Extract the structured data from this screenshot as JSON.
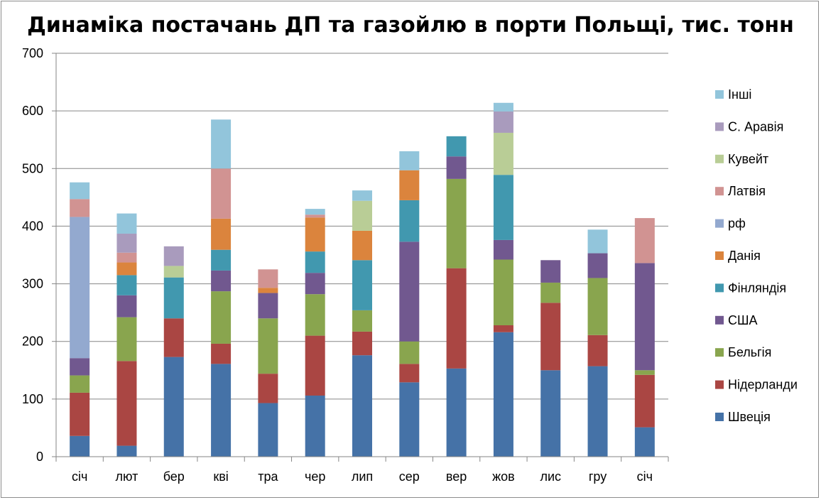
{
  "chart_data": {
    "type": "bar",
    "stacked": true,
    "title": "Динаміка постачань ДП та газойлю в порти Польщі, тис. тонн",
    "xlabel": "",
    "ylabel": "",
    "ylim": [
      0,
      700
    ],
    "yticks": [
      "0",
      "100",
      "200",
      "300",
      "400",
      "500",
      "600",
      "700"
    ],
    "grid": true,
    "legend_position": "right",
    "categories": [
      "січ",
      "лют",
      "бер",
      "кві",
      "тра",
      "чер",
      "лип",
      "сер",
      "вер",
      "жов",
      "лис",
      "гру",
      "січ"
    ],
    "series": [
      {
        "name": "Швеція",
        "color": "#4572A7",
        "values": [
          36,
          19,
          173,
          161,
          93,
          106,
          176,
          129,
          153,
          216,
          150,
          157,
          51
        ]
      },
      {
        "name": "Нідерланди",
        "color": "#AA4643",
        "values": [
          75,
          147,
          67,
          35,
          51,
          104,
          41,
          32,
          174,
          12,
          117,
          54,
          91
        ]
      },
      {
        "name": "Бельгія",
        "color": "#89A54E",
        "values": [
          30,
          76,
          0,
          91,
          96,
          72,
          37,
          39,
          155,
          114,
          35,
          99,
          8
        ]
      },
      {
        "name": "США",
        "color": "#71588F",
        "values": [
          30,
          38,
          0,
          36,
          44,
          37,
          0,
          173,
          39,
          34,
          39,
          43,
          186
        ]
      },
      {
        "name": "Фінляндія",
        "color": "#4198AF",
        "values": [
          0,
          35,
          71,
          36,
          0,
          37,
          87,
          72,
          35,
          113,
          0,
          0,
          0
        ]
      },
      {
        "name": "Данія",
        "color": "#DB843D",
        "values": [
          0,
          22,
          0,
          54,
          9,
          59,
          51,
          52,
          0,
          0,
          0,
          0,
          0
        ]
      },
      {
        "name": "рф",
        "color": "#93A9CF",
        "values": [
          245,
          0,
          0,
          0,
          0,
          0,
          0,
          0,
          0,
          0,
          0,
          0,
          0
        ]
      },
      {
        "name": "Латвія",
        "color": "#D19392",
        "values": [
          31,
          17,
          0,
          87,
          32,
          5,
          0,
          0,
          0,
          0,
          0,
          0,
          78
        ]
      },
      {
        "name": "Кувейт",
        "color": "#B9CD96",
        "values": [
          0,
          0,
          20,
          0,
          0,
          0,
          52,
          0,
          0,
          73,
          0,
          0,
          0
        ]
      },
      {
        "name": "С. Аравія",
        "color": "#A99BBD",
        "values": [
          0,
          33,
          34,
          0,
          0,
          0,
          0,
          0,
          0,
          37,
          0,
          0,
          0
        ]
      },
      {
        "name": "Інші",
        "color": "#92C5DB",
        "values": [
          29,
          35,
          0,
          85,
          0,
          10,
          18,
          33,
          0,
          15,
          0,
          41,
          0
        ]
      }
    ]
  }
}
